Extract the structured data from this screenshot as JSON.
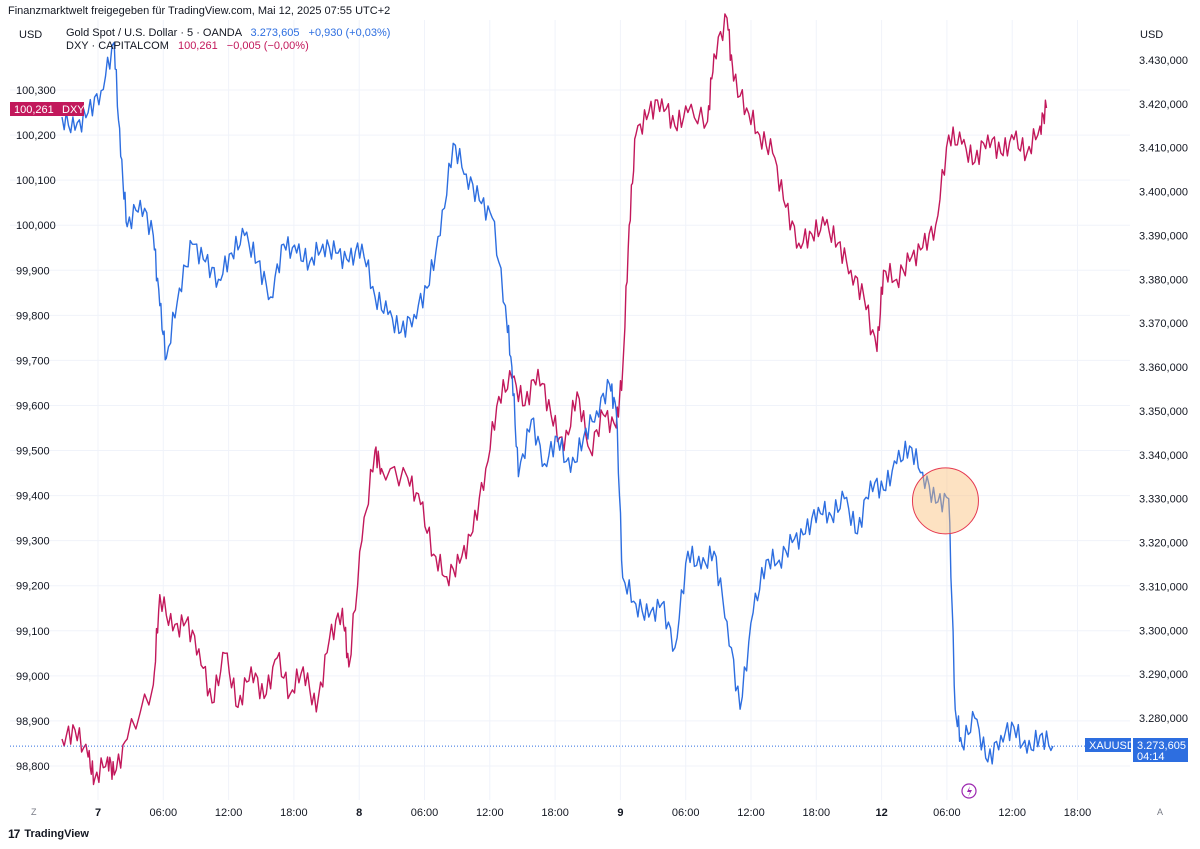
{
  "header": {
    "publisher": "Finanzmarktwelt freigegeben für TradingView.com, Mai 12, 2025 07:55 UTC+2"
  },
  "legend": [
    {
      "name": "Gold Spot / U.S. Dollar · 5 · OANDA",
      "value": "3.273,605",
      "change": "+0,930 (+0,03%)",
      "color": "#2d6ee0"
    },
    {
      "name": "DXY · CAPITALCOM",
      "value": "100,261",
      "change": "−0,005 (−0,00%)",
      "color": "#c2185b"
    }
  ],
  "left_axis": {
    "currency": "USD",
    "ticks": [
      "100,300",
      "100,200",
      "100,100",
      "100,000",
      "99,900",
      "99,800",
      "99,700",
      "99,600",
      "99,500",
      "99,400",
      "99,300",
      "99,200",
      "99,100",
      "99,000",
      "98,900",
      "98,800"
    ]
  },
  "right_axis": {
    "currency": "USD",
    "ticks": [
      "3.430,000",
      "3.420,000",
      "3.410,000",
      "3.400,000",
      "3.390,000",
      "3.380,000",
      "3.370,000",
      "3.360,000",
      "3.350,000",
      "3.340,000",
      "3.330,000",
      "3.320,000",
      "3.310,000",
      "3.300,000",
      "3.290,000",
      "3.280,000"
    ]
  },
  "time_axis": {
    "labels": [
      "7",
      "06:00",
      "12:00",
      "18:00",
      "8",
      "06:00",
      "12:00",
      "18:00",
      "9",
      "06:00",
      "12:00",
      "18:00",
      "12",
      "06:00",
      "12:00",
      "18:00"
    ],
    "bold": [
      "7",
      "8",
      "9",
      "12"
    ]
  },
  "price_labels": {
    "dxy": {
      "value": "100,261",
      "tag": "DXY",
      "color": "#c2185b"
    },
    "xauusd": {
      "tag": "XAUUSD",
      "value": "3.273,605",
      "countdown": "04:14",
      "color": "#2d6ee0"
    }
  },
  "controls": {
    "zoom_left": "Z",
    "auto_right": "A"
  },
  "footer": {
    "brand": "TradingView"
  },
  "chart_data": {
    "type": "line",
    "title": "Gold Spot / U.S. Dollar vs DXY",
    "x": [
      "7",
      "06:00",
      "12:00",
      "18:00",
      "8",
      "06:00",
      "12:00",
      "18:00",
      "9",
      "06:00",
      "12:00",
      "18:00",
      "12",
      "06:00",
      "12:00",
      "18:00"
    ],
    "series": [
      {
        "name": "DXY · CAPITALCOM",
        "axis": "left",
        "color": "#c2185b",
        "points": [
          [
            0,
            98.86
          ],
          [
            0.2,
            98.88
          ],
          [
            0.4,
            98.82
          ],
          [
            0.5,
            98.77
          ],
          [
            0.7,
            98.82
          ],
          [
            0.8,
            98.78
          ],
          [
            1,
            98.86
          ],
          [
            1.4,
            98.98
          ],
          [
            1.5,
            99.18
          ],
          [
            1.7,
            99.1
          ],
          [
            1.9,
            99.12
          ],
          [
            2.1,
            99.06
          ],
          [
            2.3,
            98.94
          ],
          [
            2.5,
            99.05
          ],
          [
            2.7,
            98.93
          ],
          [
            2.9,
            99.02
          ],
          [
            3.1,
            98.95
          ],
          [
            3.3,
            99.04
          ],
          [
            3.5,
            98.96
          ],
          [
            3.7,
            99.02
          ],
          [
            3.9,
            98.92
          ],
          [
            4.1,
            99.08
          ],
          [
            4.3,
            99.15
          ],
          [
            4.4,
            99.02
          ],
          [
            4.6,
            99.3
          ],
          [
            4.8,
            99.5
          ],
          [
            4.9,
            99.46
          ],
          [
            5.3,
            99.44
          ],
          [
            5.5,
            99.38
          ],
          [
            5.7,
            99.27
          ],
          [
            5.9,
            99.22
          ],
          [
            6.1,
            99.25
          ],
          [
            6.3,
            99.32
          ],
          [
            6.5,
            99.46
          ],
          [
            6.7,
            99.62
          ],
          [
            6.9,
            99.66
          ],
          [
            7.1,
            99.6
          ],
          [
            7.3,
            99.68
          ],
          [
            7.5,
            99.58
          ],
          [
            7.7,
            99.5
          ],
          [
            7.9,
            99.63
          ],
          [
            8.1,
            99.5
          ],
          [
            8.3,
            99.58
          ],
          [
            8.5,
            99.55
          ],
          [
            8.6,
            99.68
          ],
          [
            8.7,
            100.0
          ],
          [
            8.8,
            100.2
          ],
          [
            9.0,
            100.25
          ],
          [
            9.2,
            100.28
          ],
          [
            9.4,
            100.22
          ],
          [
            9.6,
            100.25
          ],
          [
            9.9,
            100.23
          ],
          [
            10.0,
            100.38
          ],
          [
            10.2,
            100.46
          ],
          [
            10.3,
            100.32
          ],
          [
            10.5,
            100.26
          ],
          [
            10.7,
            100.2
          ],
          [
            10.9,
            100.16
          ],
          [
            11.1,
            100.04
          ],
          [
            11.3,
            99.96
          ],
          [
            11.5,
            99.98
          ],
          [
            11.7,
            100.0
          ],
          [
            11.9,
            99.96
          ],
          [
            12.1,
            99.9
          ],
          [
            12.3,
            99.84
          ],
          [
            12.5,
            99.72
          ],
          [
            12.6,
            99.9
          ],
          [
            12.8,
            99.88
          ],
          [
            13.0,
            99.92
          ],
          [
            13.2,
            99.95
          ],
          [
            13.4,
            100.0
          ],
          [
            13.6,
            100.2
          ],
          [
            13.8,
            100.18
          ],
          [
            14.0,
            100.14
          ],
          [
            14.2,
            100.2
          ],
          [
            14.4,
            100.16
          ],
          [
            14.6,
            100.19
          ],
          [
            14.8,
            100.16
          ],
          [
            15.0,
            100.22
          ],
          [
            15.1,
            100.26
          ]
        ]
      },
      {
        "name": "Gold Spot / U.S. Dollar · 5 · OANDA",
        "axis": "right",
        "color": "#2d6ee0",
        "points": [
          [
            0,
            3417
          ],
          [
            0.2,
            3414
          ],
          [
            0.4,
            3418
          ],
          [
            0.6,
            3423
          ],
          [
            0.8,
            3434
          ],
          [
            0.9,
            3408
          ],
          [
            1.0,
            3392
          ],
          [
            1.2,
            3398
          ],
          [
            1.4,
            3390
          ],
          [
            1.5,
            3374
          ],
          [
            1.6,
            3362
          ],
          [
            1.8,
            3378
          ],
          [
            2.0,
            3388
          ],
          [
            2.2,
            3384
          ],
          [
            2.4,
            3380
          ],
          [
            2.6,
            3386
          ],
          [
            2.8,
            3390
          ],
          [
            3.0,
            3384
          ],
          [
            3.2,
            3376
          ],
          [
            3.4,
            3388
          ],
          [
            3.6,
            3386
          ],
          [
            3.8,
            3384
          ],
          [
            4.0,
            3388
          ],
          [
            4.2,
            3386
          ],
          [
            4.4,
            3384
          ],
          [
            4.6,
            3388
          ],
          [
            4.8,
            3376
          ],
          [
            5.0,
            3372
          ],
          [
            5.2,
            3368
          ],
          [
            5.4,
            3372
          ],
          [
            5.6,
            3378
          ],
          [
            5.8,
            3390
          ],
          [
            6.0,
            3411
          ],
          [
            6.2,
            3404
          ],
          [
            6.4,
            3398
          ],
          [
            6.6,
            3394
          ],
          [
            6.8,
            3374
          ],
          [
            6.9,
            3360
          ],
          [
            7.0,
            3335
          ],
          [
            7.2,
            3348
          ],
          [
            7.4,
            3338
          ],
          [
            7.6,
            3344
          ],
          [
            7.8,
            3336
          ],
          [
            8.0,
            3344
          ],
          [
            8.2,
            3350
          ],
          [
            8.4,
            3356
          ],
          [
            8.5,
            3350
          ],
          [
            8.6,
            3312
          ],
          [
            8.8,
            3306
          ],
          [
            9.0,
            3303
          ],
          [
            9.2,
            3306
          ],
          [
            9.4,
            3296
          ],
          [
            9.6,
            3318
          ],
          [
            9.8,
            3314
          ],
          [
            10.0,
            3318
          ],
          [
            10.2,
            3302
          ],
          [
            10.4,
            3282
          ],
          [
            10.6,
            3304
          ],
          [
            10.8,
            3316
          ],
          [
            11.0,
            3316
          ],
          [
            11.2,
            3320
          ],
          [
            11.4,
            3322
          ],
          [
            11.6,
            3328
          ],
          [
            11.8,
            3326
          ],
          [
            12.0,
            3330
          ],
          [
            12.2,
            3322
          ],
          [
            12.4,
            3334
          ],
          [
            12.6,
            3332
          ],
          [
            12.8,
            3338
          ],
          [
            13.0,
            3342
          ],
          [
            13.2,
            3336
          ],
          [
            13.4,
            3329
          ],
          [
            13.6,
            3330
          ],
          [
            13.7,
            3282
          ],
          [
            13.8,
            3274
          ],
          [
            14.0,
            3280
          ],
          [
            14.2,
            3270
          ],
          [
            14.4,
            3276
          ],
          [
            14.6,
            3278
          ],
          [
            14.8,
            3272
          ],
          [
            15.0,
            3276
          ],
          [
            15.2,
            3273.6
          ]
        ]
      }
    ],
    "left_ylim": [
      98.73,
      100.42
    ],
    "right_ylim": [
      3262,
      3436
    ],
    "grid": true,
    "annotation": {
      "type": "circle",
      "at": [
        13.55,
        3329.5
      ],
      "color": "#e53950"
    }
  }
}
